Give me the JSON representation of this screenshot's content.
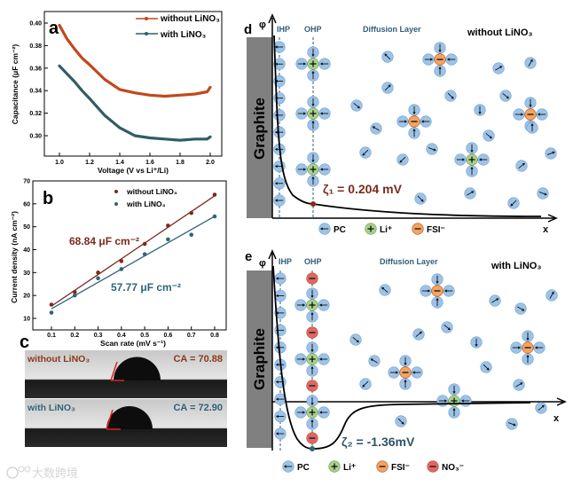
{
  "panels": {
    "a": "a",
    "b": "b",
    "c": "c",
    "d": "d",
    "e": "e"
  },
  "colors": {
    "without": "#c2481c",
    "with": "#2f5d69",
    "without_text": "#7b2a1c",
    "with_text": "#2f6478",
    "pc": "#9dc3e6",
    "li": "#a9d18e",
    "fsi": "#f4a460",
    "no3": "#e06666",
    "graphite": "#808080"
  },
  "chart_data": [
    {
      "type": "line",
      "panel": "a",
      "xlabel": "Voltage (V vs Li⁺/Li)",
      "ylabel": "Capacitance (μF cm⁻²)",
      "xlim": [
        0.9,
        2.05
      ],
      "ylim": [
        0.285,
        0.41
      ],
      "xticks": [
        "1.0",
        "1.2",
        "1.4",
        "1.6",
        "1.8",
        "2.0"
      ],
      "yticks": [
        "0.30",
        "0.32",
        "0.34",
        "0.36",
        "0.38",
        "0.40"
      ],
      "legend": "top-right",
      "series": [
        {
          "name": "without LiNO₃",
          "x": [
            1.0,
            1.05,
            1.1,
            1.15,
            1.2,
            1.3,
            1.4,
            1.5,
            1.6,
            1.7,
            1.8,
            1.9,
            1.98,
            2.0
          ],
          "y": [
            0.398,
            0.386,
            0.377,
            0.369,
            0.363,
            0.35,
            0.341,
            0.338,
            0.336,
            0.335,
            0.336,
            0.337,
            0.339,
            0.343
          ]
        },
        {
          "name": "with LiNO₃",
          "x": [
            1.0,
            1.05,
            1.1,
            1.15,
            1.2,
            1.3,
            1.4,
            1.5,
            1.6,
            1.7,
            1.8,
            1.9,
            1.98,
            2.0
          ],
          "y": [
            0.362,
            0.355,
            0.348,
            0.34,
            0.333,
            0.318,
            0.307,
            0.3,
            0.298,
            0.297,
            0.296,
            0.297,
            0.297,
            0.299
          ]
        }
      ]
    },
    {
      "type": "scatter",
      "panel": "b",
      "xlabel": "Scan rate (mV s⁻¹)",
      "ylabel": "Current density (nA cm⁻²)",
      "xlim": [
        0.05,
        0.85
      ],
      "ylim": [
        5,
        70
      ],
      "xticks": [
        "0.1",
        "0.2",
        "0.3",
        "0.4",
        "0.5",
        "0.6",
        "0.7",
        "0.8"
      ],
      "yticks": [
        "10",
        "20",
        "30",
        "40",
        "50",
        "60",
        "70"
      ],
      "legend": "top-center",
      "series": [
        {
          "name": "without LiNO₃",
          "x": [
            0.1,
            0.2,
            0.3,
            0.4,
            0.5,
            0.6,
            0.7,
            0.8
          ],
          "y": [
            16,
            21.5,
            30,
            35,
            42.5,
            50.5,
            56,
            64
          ],
          "fit_label": "68.84 μF cm⁻²"
        },
        {
          "name": "with LiNO₃",
          "x": [
            0.1,
            0.2,
            0.3,
            0.4,
            0.5,
            0.6,
            0.7,
            0.8
          ],
          "y": [
            12.5,
            20,
            27.5,
            31.5,
            38,
            44.5,
            46.5,
            54.5
          ],
          "fit_label": "57.77 μF cm⁻²"
        }
      ]
    }
  ],
  "panel_c": {
    "top": {
      "label": "without LiNO₃",
      "ca": "CA = 70.88"
    },
    "bottom": {
      "label": "with LiNO₃",
      "ca": "CA = 72.90"
    }
  },
  "panel_d": {
    "phi": "φ",
    "ihp": "IHP",
    "ohp": "OHP",
    "diffusion": "Diffusion Layer",
    "condition": "without LiNO₃",
    "electrode": "Graphite",
    "zeta": "ζ₁ = 0.204 mV",
    "x_axis": "x",
    "legend": [
      "PC",
      "Li⁺",
      "FSI⁻"
    ]
  },
  "panel_e": {
    "phi": "φ",
    "ihp": "IHP",
    "ohp": "OHP",
    "diffusion": "Diffusion Layer",
    "condition": "with LiNO₃",
    "electrode": "Graphite",
    "zeta": "ζ₂ = -1.36mV",
    "x_axis": "x",
    "legend": [
      "PC",
      "Li⁺",
      "FSI⁻",
      "NO₃⁻"
    ]
  },
  "watermark": "大数跨境"
}
